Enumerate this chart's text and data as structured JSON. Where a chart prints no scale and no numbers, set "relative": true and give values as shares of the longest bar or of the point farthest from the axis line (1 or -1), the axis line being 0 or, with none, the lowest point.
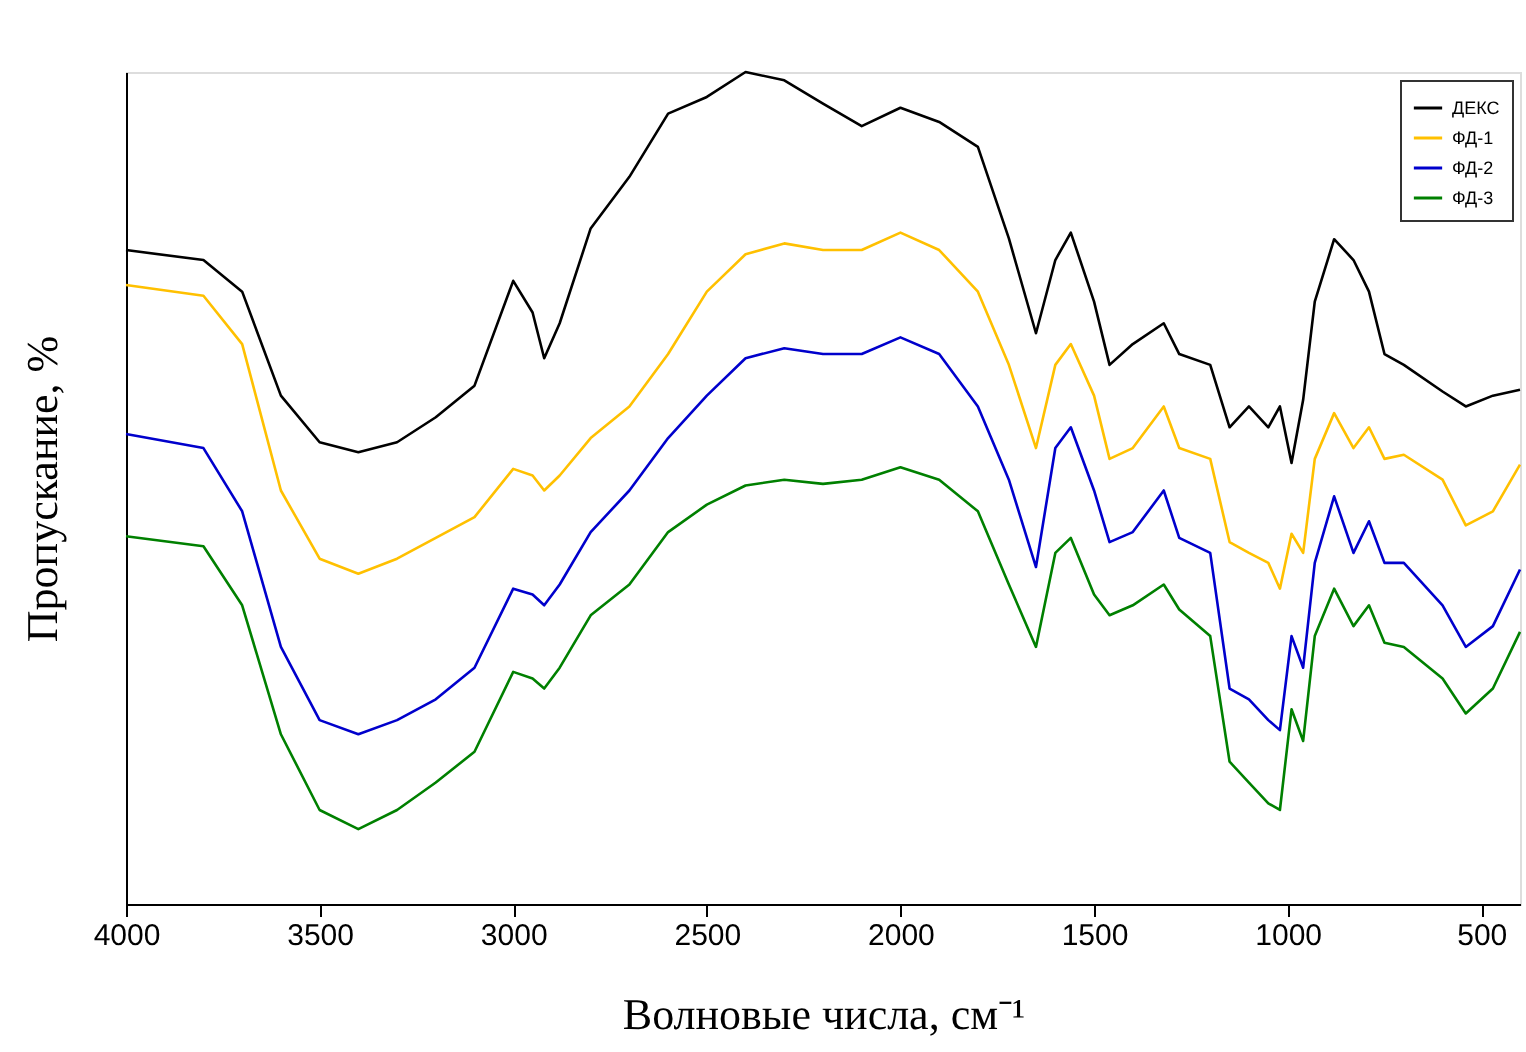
{
  "chart_data": {
    "type": "line",
    "relative": true,
    "xlabel": "Волновые числа, см⁻¹",
    "ylabel": "Пропускание, %",
    "x": [
      4000,
      3800,
      3700,
      3600,
      3500,
      3400,
      3300,
      3200,
      3100,
      3000,
      2950,
      2920,
      2880,
      2800,
      2700,
      2600,
      2500,
      2400,
      2300,
      2200,
      2100,
      2000,
      1900,
      1800,
      1720,
      1650,
      1600,
      1560,
      1500,
      1460,
      1400,
      1320,
      1280,
      1200,
      1150,
      1100,
      1050,
      1020,
      990,
      960,
      930,
      880,
      830,
      790,
      750,
      700,
      600,
      540,
      470,
      400
    ],
    "xlim": [
      4000,
      400
    ],
    "xticks": [
      4000,
      3500,
      3000,
      2500,
      2000,
      1500,
      1000,
      500
    ],
    "tick_labels": "x",
    "grid": false,
    "legend": "top right",
    "line_style": "solid",
    "marker": "none",
    "series": [
      {
        "name": "ДЕКС",
        "color": "#000000",
        "values": [
          0.786,
          0.774,
          0.736,
          0.611,
          0.555,
          0.543,
          0.555,
          0.585,
          0.623,
          0.749,
          0.711,
          0.656,
          0.698,
          0.812,
          0.874,
          0.95,
          0.97,
          1.0,
          0.99,
          0.962,
          0.935,
          0.957,
          0.94,
          0.91,
          0.8,
          0.686,
          0.774,
          0.807,
          0.724,
          0.648,
          0.673,
          0.698,
          0.661,
          0.648,
          0.573,
          0.598,
          0.573,
          0.598,
          0.53,
          0.606,
          0.724,
          0.799,
          0.774,
          0.736,
          0.661,
          0.648,
          0.616,
          0.598,
          0.611,
          0.618
        ]
      },
      {
        "name": "ФД-1",
        "color": "#ffc000",
        "values": [
          0.744,
          0.731,
          0.673,
          0.497,
          0.415,
          0.397,
          0.415,
          0.44,
          0.465,
          0.523,
          0.515,
          0.497,
          0.515,
          0.56,
          0.598,
          0.661,
          0.736,
          0.781,
          0.794,
          0.786,
          0.786,
          0.807,
          0.786,
          0.736,
          0.648,
          0.548,
          0.648,
          0.673,
          0.611,
          0.535,
          0.548,
          0.598,
          0.548,
          0.535,
          0.435,
          0.422,
          0.41,
          0.379,
          0.445,
          0.422,
          0.535,
          0.59,
          0.548,
          0.573,
          0.535,
          0.54,
          0.51,
          0.455,
          0.472,
          0.528
        ]
      },
      {
        "name": "ФД-2",
        "color": "#0000cc",
        "values": [
          0.565,
          0.548,
          0.472,
          0.309,
          0.221,
          0.204,
          0.221,
          0.246,
          0.284,
          0.379,
          0.372,
          0.359,
          0.384,
          0.447,
          0.497,
          0.56,
          0.611,
          0.656,
          0.668,
          0.661,
          0.661,
          0.681,
          0.661,
          0.598,
          0.51,
          0.405,
          0.548,
          0.573,
          0.497,
          0.435,
          0.447,
          0.497,
          0.44,
          0.422,
          0.259,
          0.246,
          0.221,
          0.209,
          0.322,
          0.284,
          0.41,
          0.49,
          0.422,
          0.46,
          0.41,
          0.41,
          0.359,
          0.309,
          0.334,
          0.402
        ]
      },
      {
        "name": "ФД-3",
        "color": "#008000",
        "values": [
          0.442,
          0.43,
          0.359,
          0.204,
          0.113,
          0.09,
          0.113,
          0.146,
          0.183,
          0.279,
          0.271,
          0.259,
          0.284,
          0.347,
          0.384,
          0.447,
          0.48,
          0.503,
          0.51,
          0.505,
          0.51,
          0.525,
          0.51,
          0.472,
          0.384,
          0.309,
          0.422,
          0.44,
          0.372,
          0.347,
          0.359,
          0.384,
          0.354,
          0.322,
          0.171,
          0.146,
          0.121,
          0.113,
          0.234,
          0.196,
          0.322,
          0.379,
          0.334,
          0.359,
          0.314,
          0.309,
          0.271,
          0.229,
          0.259,
          0.327
        ]
      }
    ]
  }
}
